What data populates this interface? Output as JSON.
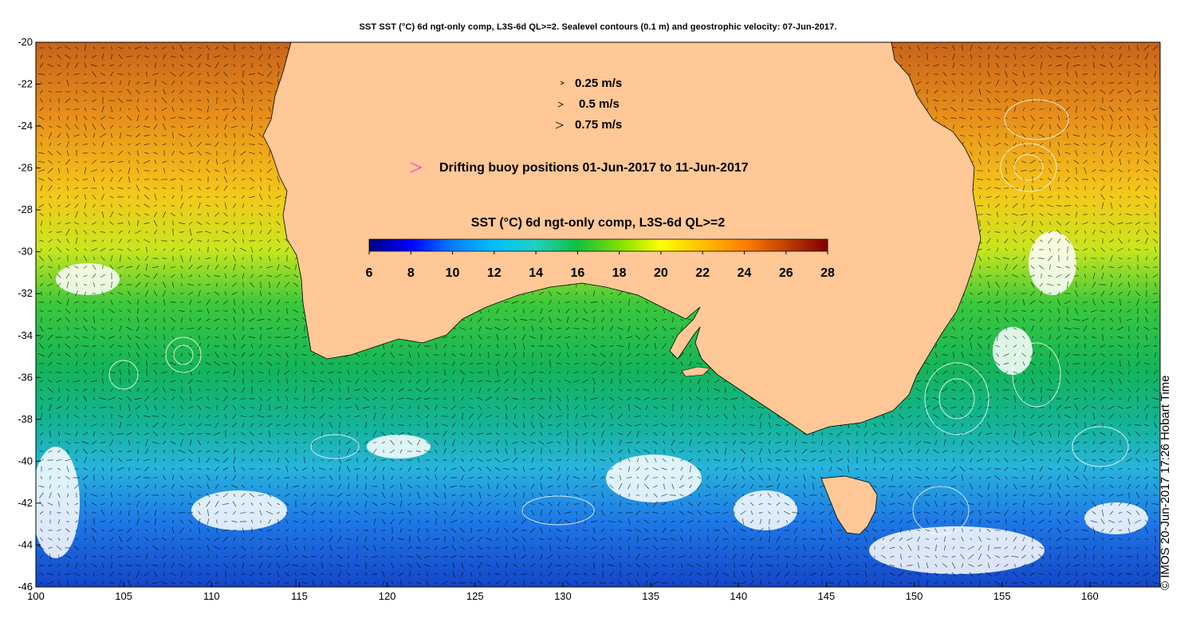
{
  "title": "SST SST (°C) 6d ngt-only comp, L3S-6d QL>=2. Sealevel contours (0.1 m) and geostrophic velocity: 07-Jun-2017.",
  "credit": "© IMOS 20-Jun-2017 17:26 Hobart Time",
  "map": {
    "lon_range": [
      100,
      164
    ],
    "lat_range": [
      -46,
      -20
    ],
    "lon_ticks": [
      100,
      105,
      110,
      115,
      120,
      125,
      130,
      135,
      140,
      145,
      150,
      155,
      160
    ],
    "lat_ticks": [
      -20,
      -22,
      -24,
      -26,
      -28,
      -30,
      -32,
      -34,
      -36,
      -38,
      -40,
      -42,
      -44,
      -46
    ],
    "land_color": "#ffc896"
  },
  "velocity_legend": [
    {
      "label": "0.25 m/s",
      "speed": 0.25
    },
    {
      "label": "0.5 m/s",
      "speed": 0.5
    },
    {
      "label": "0.75 m/s",
      "speed": 0.75
    }
  ],
  "buoy_legend": {
    "label": "Drifting buoy positions 01-Jun-2017 to 11-Jun-2017",
    "color": "#e040e0"
  },
  "colorbar": {
    "title": "SST (°C) 6d ngt-only comp, L3S-6d QL>=2",
    "min": 6,
    "max": 28,
    "ticks": [
      6,
      8,
      10,
      12,
      14,
      16,
      18,
      20,
      22,
      24,
      26,
      28
    ],
    "colormap": [
      "#00007f",
      "#0000ff",
      "#0080ff",
      "#00c0ff",
      "#20d0c0",
      "#10c040",
      "#80e000",
      "#ffff00",
      "#ffc000",
      "#ff8000",
      "#c04000",
      "#7f0000"
    ]
  }
}
